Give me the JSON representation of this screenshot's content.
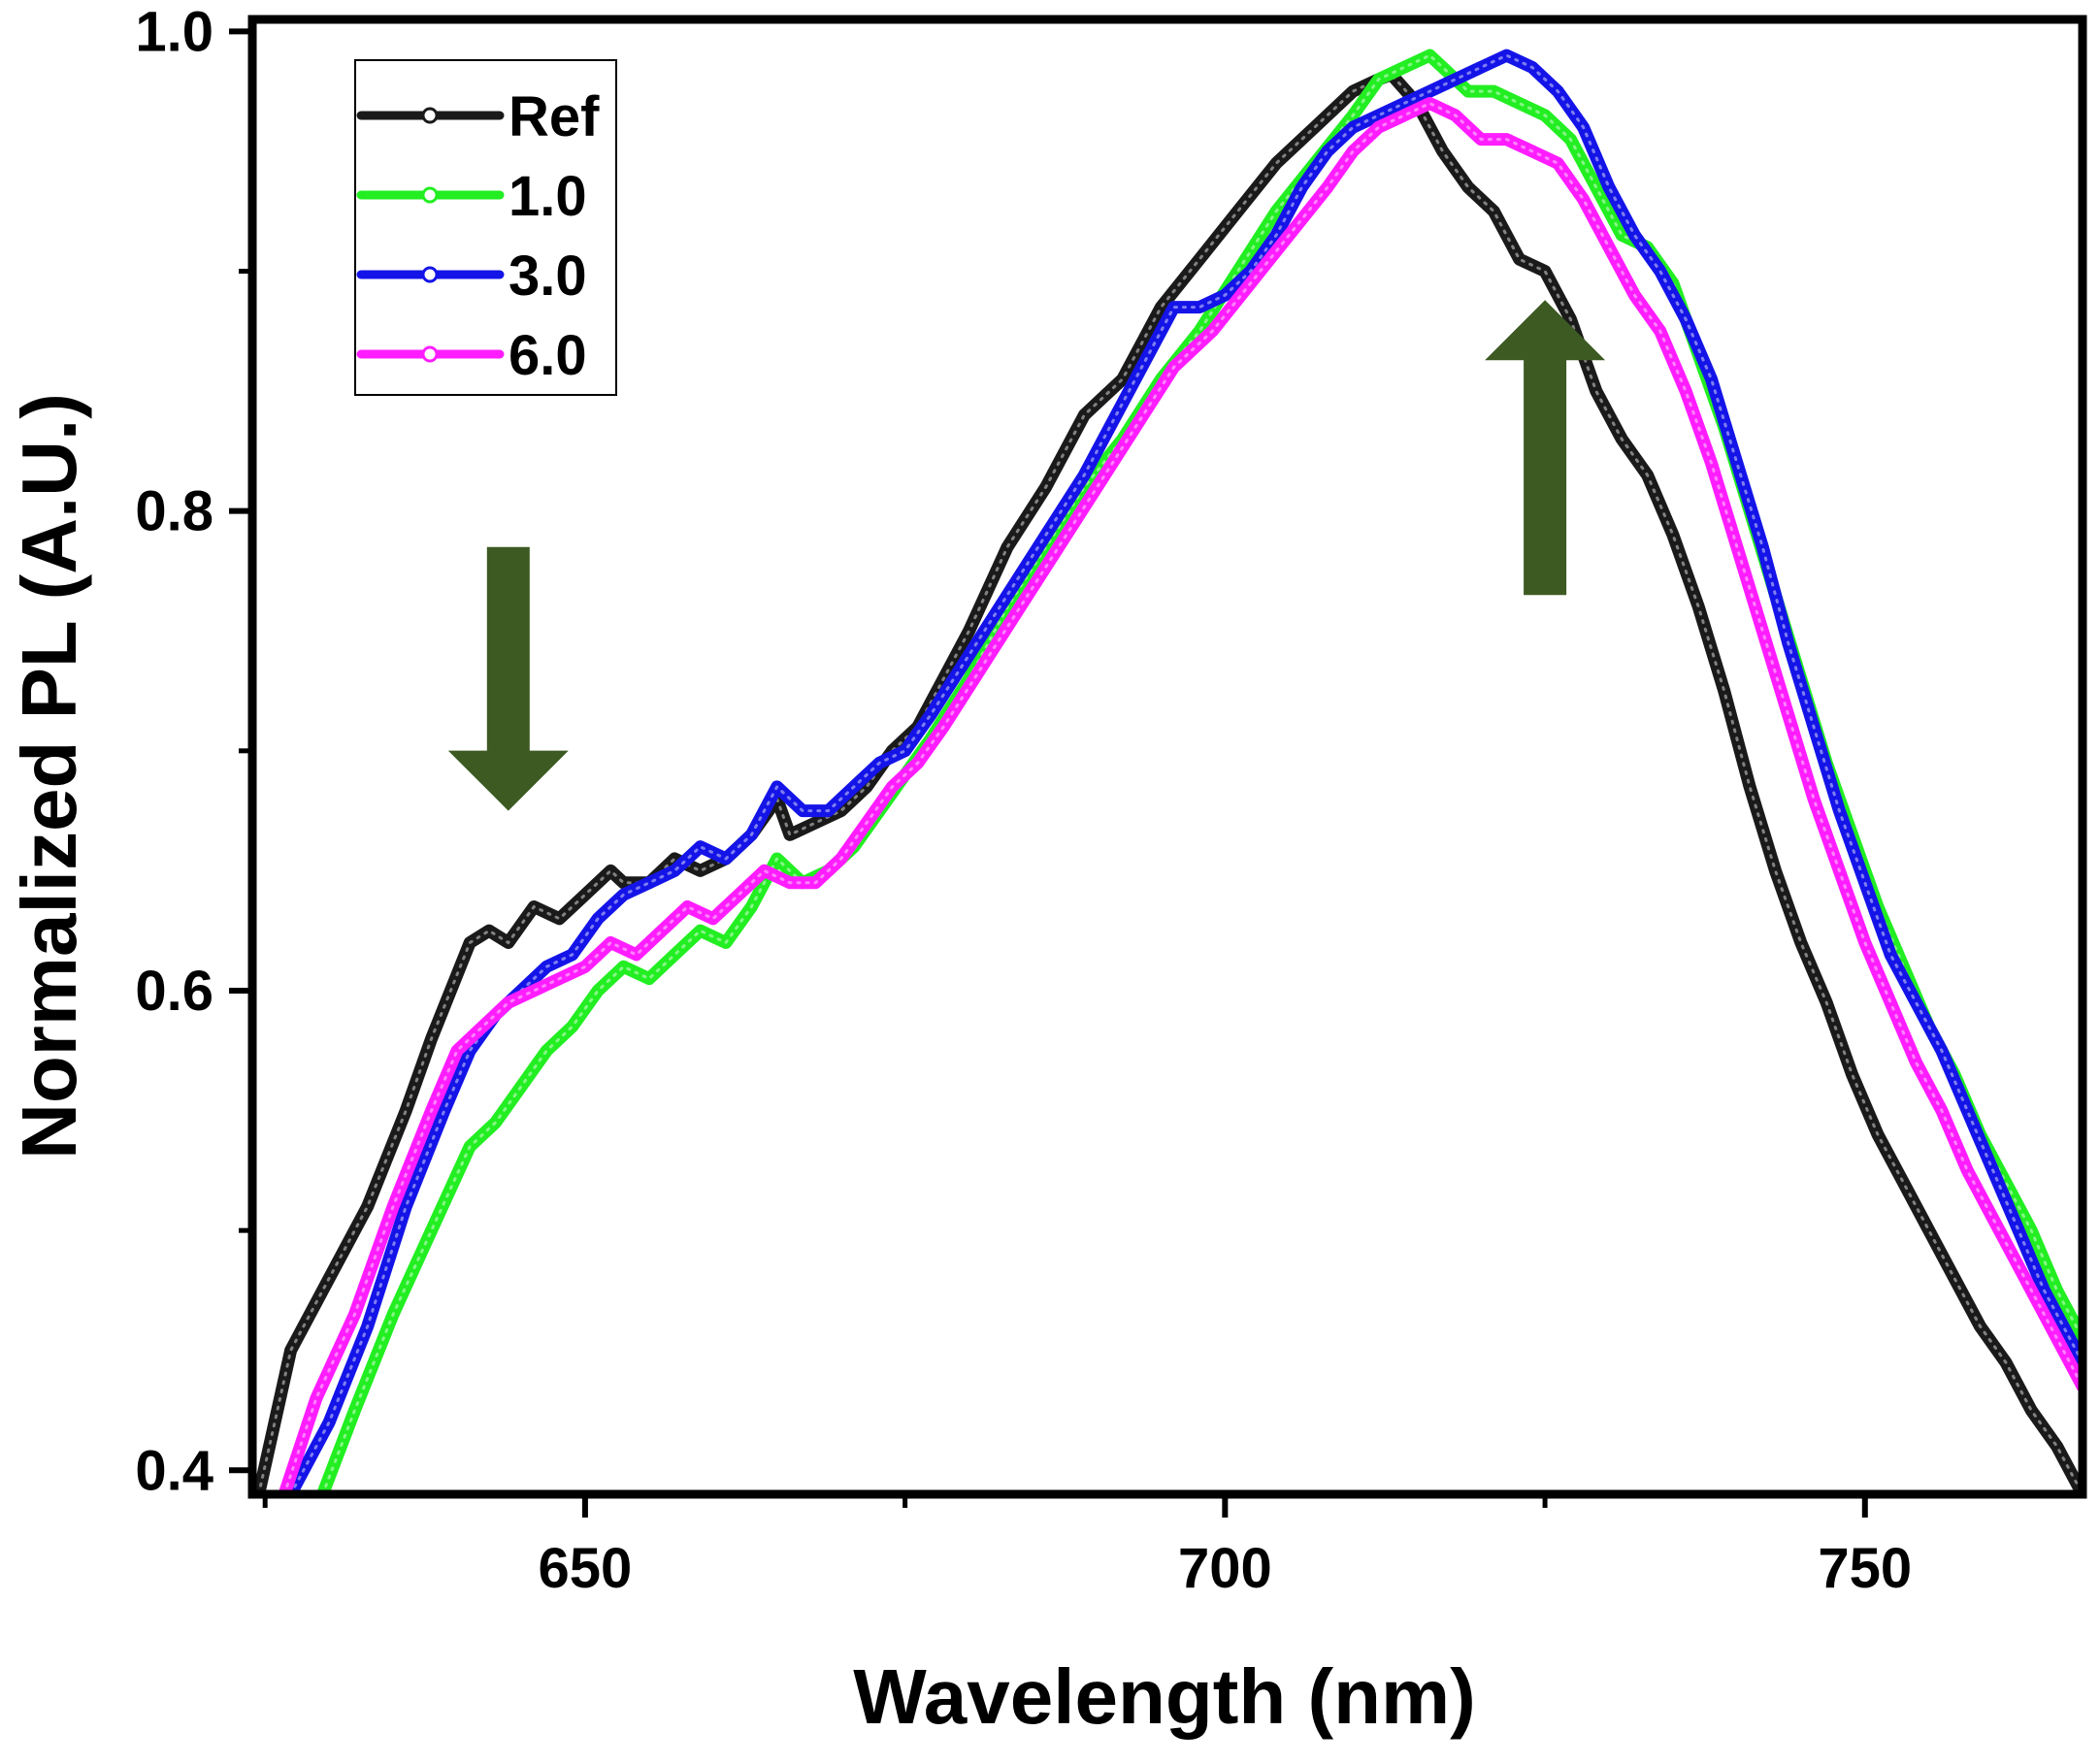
{
  "chart_data": {
    "type": "line",
    "title": "",
    "xlabel": "Wavelength (nm)",
    "ylabel": "Normalized PL (A.U.)",
    "xlim": [
      624,
      767
    ],
    "ylim": [
      0.39,
      1.005
    ],
    "xticks": [
      650,
      700,
      750
    ],
    "xtick_labels": [
      "650",
      "700",
      "750"
    ],
    "xminor": [
      625,
      675,
      725
    ],
    "yticks": [
      0.4,
      0.6,
      0.8,
      1.0
    ],
    "ytick_labels": [
      "0.4",
      "0.6",
      "0.8",
      "1.0"
    ],
    "yminor": [
      0.5,
      0.7,
      0.9
    ],
    "grid": false,
    "legend_position": "top-left",
    "series": [
      {
        "name": "Ref",
        "color": "#1a1a1a",
        "x": [
          624.5,
          627,
          630,
          633,
          636,
          638,
          641,
          642.5,
          644,
          646,
          648,
          650,
          652,
          653,
          655,
          657,
          659,
          661,
          663,
          665,
          666,
          668,
          670,
          672,
          674,
          676,
          678,
          680,
          683,
          686,
          689,
          692,
          695,
          698,
          701,
          704,
          707,
          710,
          712,
          713,
          715,
          717,
          719,
          721,
          723,
          725,
          727,
          729,
          731,
          733,
          735,
          737,
          739,
          741,
          743,
          745,
          747,
          749,
          751,
          753,
          755,
          757,
          759,
          761,
          763,
          765,
          767
        ],
        "y": [
          0.39,
          0.45,
          0.48,
          0.51,
          0.55,
          0.58,
          0.62,
          0.625,
          0.62,
          0.635,
          0.63,
          0.64,
          0.65,
          0.645,
          0.645,
          0.655,
          0.65,
          0.655,
          0.665,
          0.68,
          0.665,
          0.67,
          0.675,
          0.685,
          0.7,
          0.71,
          0.73,
          0.75,
          0.785,
          0.81,
          0.84,
          0.855,
          0.885,
          0.905,
          0.925,
          0.945,
          0.96,
          0.975,
          0.98,
          0.982,
          0.97,
          0.95,
          0.935,
          0.925,
          0.905,
          0.9,
          0.88,
          0.85,
          0.83,
          0.815,
          0.79,
          0.76,
          0.725,
          0.685,
          0.65,
          0.62,
          0.595,
          0.565,
          0.54,
          0.52,
          0.5,
          0.48,
          0.46,
          0.445,
          0.425,
          0.41,
          0.39
        ]
      },
      {
        "name": "1.0",
        "color": "#22ee22",
        "x": [
          629.5,
          632,
          635,
          638,
          641,
          643,
          645,
          647,
          649,
          651,
          653,
          655,
          657,
          659,
          661,
          663,
          665,
          667,
          669,
          671,
          673,
          675,
          677,
          680,
          683,
          686,
          689,
          692,
          695,
          698,
          701,
          704,
          707,
          710,
          712,
          714,
          716,
          717,
          719,
          721,
          723,
          725,
          727,
          729,
          731,
          733,
          735,
          737,
          739,
          741,
          743,
          745,
          747,
          749,
          751,
          753,
          755,
          757,
          759,
          761,
          763,
          765,
          767
        ],
        "y": [
          0.39,
          0.425,
          0.465,
          0.5,
          0.535,
          0.545,
          0.56,
          0.575,
          0.585,
          0.6,
          0.61,
          0.605,
          0.615,
          0.625,
          0.62,
          0.635,
          0.655,
          0.645,
          0.65,
          0.66,
          0.675,
          0.69,
          0.705,
          0.73,
          0.76,
          0.785,
          0.81,
          0.83,
          0.855,
          0.875,
          0.9,
          0.925,
          0.945,
          0.965,
          0.98,
          0.985,
          0.99,
          0.985,
          0.975,
          0.975,
          0.97,
          0.965,
          0.955,
          0.935,
          0.915,
          0.91,
          0.895,
          0.865,
          0.835,
          0.8,
          0.765,
          0.73,
          0.695,
          0.665,
          0.635,
          0.61,
          0.585,
          0.565,
          0.54,
          0.52,
          0.5,
          0.475,
          0.455
        ]
      },
      {
        "name": "3.0",
        "color": "#1414e8",
        "x": [
          627,
          630,
          633,
          636,
          639,
          641,
          643,
          645,
          647,
          649,
          651,
          653,
          655,
          657,
          659,
          661,
          663,
          665,
          667,
          669,
          671,
          673,
          675,
          677,
          680,
          683,
          686,
          689,
          692,
          695,
          696,
          698,
          700,
          702,
          704,
          706,
          708,
          710,
          712,
          714,
          716,
          718,
          720,
          722,
          724,
          726,
          728,
          730,
          732,
          734,
          736,
          738,
          740,
          742,
          744,
          746,
          748,
          750,
          752,
          754,
          756,
          758,
          760,
          762,
          764,
          766,
          767
        ],
        "y": [
          0.39,
          0.42,
          0.46,
          0.51,
          0.55,
          0.575,
          0.59,
          0.6,
          0.61,
          0.615,
          0.63,
          0.64,
          0.645,
          0.65,
          0.66,
          0.655,
          0.665,
          0.685,
          0.675,
          0.675,
          0.685,
          0.695,
          0.7,
          0.715,
          0.74,
          0.765,
          0.79,
          0.815,
          0.845,
          0.875,
          0.885,
          0.885,
          0.89,
          0.9,
          0.915,
          0.935,
          0.95,
          0.96,
          0.965,
          0.97,
          0.975,
          0.98,
          0.985,
          0.99,
          0.985,
          0.975,
          0.96,
          0.935,
          0.915,
          0.9,
          0.88,
          0.855,
          0.82,
          0.785,
          0.745,
          0.71,
          0.675,
          0.645,
          0.615,
          0.595,
          0.575,
          0.55,
          0.525,
          0.5,
          0.475,
          0.455,
          0.445
        ]
      },
      {
        "name": "6.0",
        "color": "#ff1dff",
        "x": [
          626.5,
          629,
          632,
          635,
          638,
          640,
          642,
          644,
          646,
          648,
          650,
          652,
          654,
          656,
          658,
          660,
          662,
          664,
          666,
          668,
          670,
          672,
          674,
          676,
          678,
          681,
          684,
          687,
          690,
          693,
          696,
          699,
          702,
          705,
          708,
          710,
          712,
          714,
          716,
          718,
          720,
          722,
          724,
          726,
          728,
          730,
          732,
          734,
          736,
          738,
          740,
          742,
          744,
          746,
          748,
          750,
          752,
          754,
          756,
          758,
          760,
          762,
          764,
          766,
          767
        ],
        "y": [
          0.39,
          0.43,
          0.465,
          0.51,
          0.55,
          0.575,
          0.585,
          0.595,
          0.6,
          0.605,
          0.61,
          0.62,
          0.615,
          0.625,
          0.635,
          0.63,
          0.64,
          0.65,
          0.645,
          0.645,
          0.655,
          0.67,
          0.685,
          0.695,
          0.71,
          0.735,
          0.76,
          0.785,
          0.81,
          0.835,
          0.86,
          0.875,
          0.895,
          0.915,
          0.935,
          0.95,
          0.96,
          0.965,
          0.97,
          0.965,
          0.955,
          0.955,
          0.95,
          0.945,
          0.93,
          0.91,
          0.89,
          0.875,
          0.85,
          0.82,
          0.785,
          0.75,
          0.715,
          0.68,
          0.65,
          0.62,
          0.595,
          0.57,
          0.55,
          0.525,
          0.505,
          0.485,
          0.465,
          0.445,
          0.435
        ]
      }
    ],
    "annotations": [
      {
        "type": "arrow",
        "direction": "down",
        "color": "#3d5a22",
        "x": 644,
        "y_from": 0.785,
        "y_to": 0.675
      },
      {
        "type": "arrow",
        "direction": "up",
        "color": "#3d5a22",
        "x": 725,
        "y_from": 0.765,
        "y_to": 0.888
      }
    ]
  }
}
